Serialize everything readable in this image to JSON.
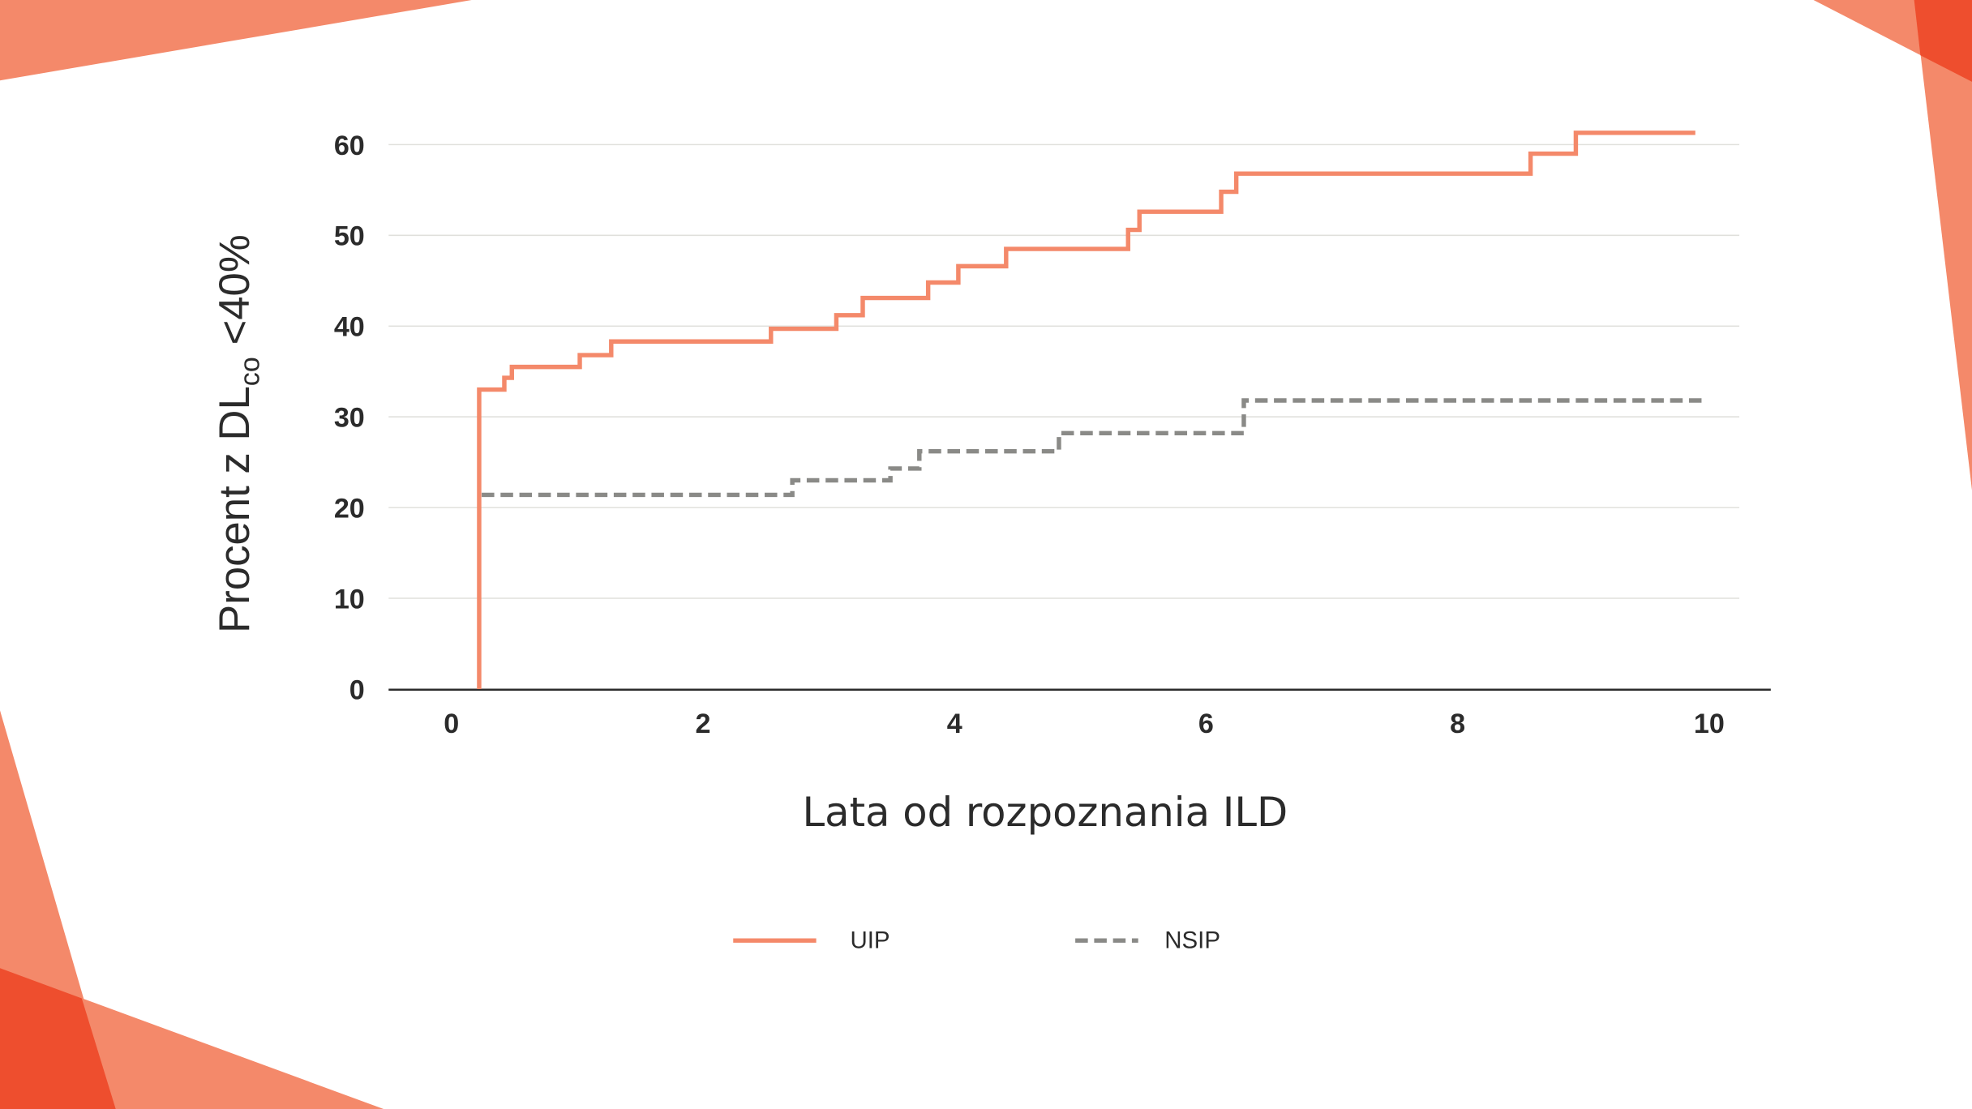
{
  "colors": {
    "uip": "#f4896a",
    "nsip": "#8a8a87",
    "accent_light": "#f4896a",
    "accent_dark": "#ee4e2e",
    "grid": "#e0e0dc",
    "axis": "#2b2b2b"
  },
  "chart_data": {
    "type": "line",
    "step": true,
    "title": "",
    "xlabel": "Lata od rozpoznania ILD",
    "ylabel": {
      "main": "Procent z DL",
      "subscript": "co",
      "suffix": " <40%"
    },
    "xlim": [
      0,
      10
    ],
    "ylim": [
      0,
      60
    ],
    "xticks": [
      "0",
      "2",
      "4",
      "6",
      "8",
      "10"
    ],
    "yticks": [
      "0",
      "10",
      "20",
      "30",
      "40",
      "50",
      "60"
    ],
    "grid": "horizontal",
    "legend_placement": "bottom",
    "series": [
      {
        "name": "UIP",
        "style": "solid",
        "x": [
          0.22,
          0.22,
          0.42,
          0.48,
          1.02,
          1.27,
          2.54,
          3.06,
          3.27,
          3.79,
          4.03,
          4.41,
          5.38,
          5.47,
          6.12,
          6.24,
          8.58,
          8.94,
          9.89
        ],
        "y": [
          0,
          33.0,
          34.3,
          35.5,
          36.8,
          38.3,
          39.7,
          41.2,
          43.1,
          44.8,
          46.6,
          48.5,
          50.6,
          52.6,
          54.8,
          56.8,
          59.0,
          61.3,
          61.3
        ]
      },
      {
        "name": "NSIP",
        "style": "dashed",
        "x": [
          0.24,
          2.71,
          3.49,
          3.72,
          4.83,
          6.3,
          9.96
        ],
        "y": [
          21.4,
          23.0,
          24.3,
          26.2,
          28.2,
          31.8,
          31.8
        ]
      }
    ]
  }
}
